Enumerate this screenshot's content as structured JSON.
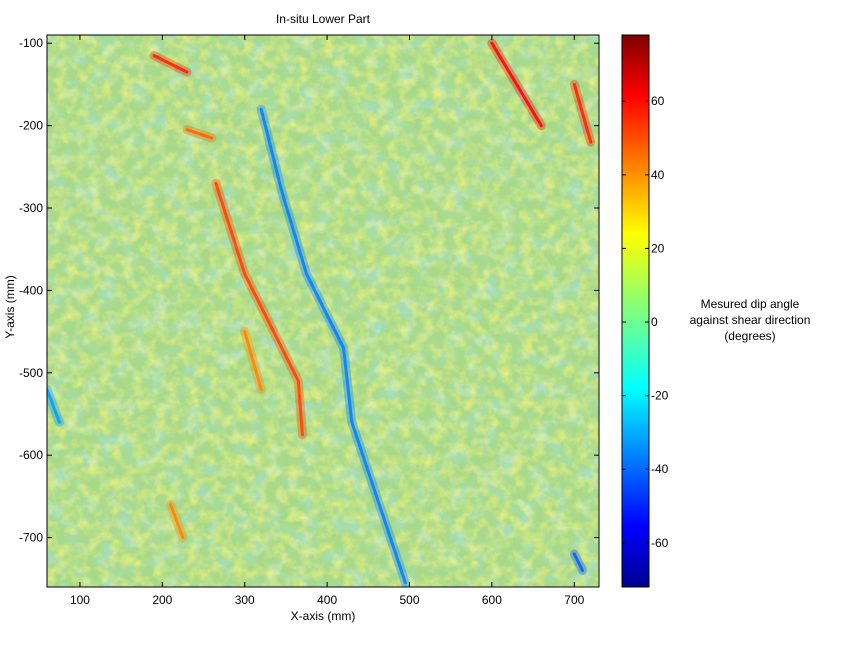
{
  "chart_data": {
    "type": "heatmap",
    "title": "In-situ Lower Part",
    "xlabel": "X-axis (mm)",
    "ylabel": "Y-axis (mm)",
    "xlim": [
      60,
      730
    ],
    "ylim": [
      -760,
      -90
    ],
    "xticks": [
      "100",
      "200",
      "300",
      "400",
      "500",
      "600",
      "700"
    ],
    "xtick_values": [
      100,
      200,
      300,
      400,
      500,
      600,
      700
    ],
    "yticks": [
      "-100",
      "-200",
      "-300",
      "-400",
      "-500",
      "-600",
      "-700"
    ],
    "ytick_values": [
      -100,
      -200,
      -300,
      -400,
      -500,
      -600,
      -700
    ],
    "colorbar": {
      "label_lines": [
        "Mesured dip angle",
        "against shear direction",
        "(degrees)"
      ],
      "clim": [
        -72,
        78
      ],
      "ticks": [
        "60",
        "40",
        "20",
        "0",
        "-20",
        "-40",
        "-60"
      ],
      "tick_values": [
        60,
        40,
        20,
        0,
        -20,
        -40,
        -60
      ],
      "colormap": "jet"
    },
    "grid": false,
    "features": [
      {
        "kind": "low-dip streak",
        "value": -35,
        "path": [
          [
            320,
            -180
          ],
          [
            345,
            -280
          ],
          [
            375,
            -380
          ],
          [
            420,
            -470
          ],
          [
            430,
            -560
          ],
          [
            470,
            -680
          ],
          [
            495,
            -755
          ]
        ]
      },
      {
        "kind": "high-dip streak",
        "value": 50,
        "path": [
          [
            265,
            -270
          ],
          [
            300,
            -380
          ],
          [
            365,
            -510
          ],
          [
            370,
            -575
          ]
        ]
      },
      {
        "kind": "high-dip streak",
        "value": 60,
        "path": [
          [
            600,
            -100
          ],
          [
            630,
            -150
          ],
          [
            660,
            -200
          ]
        ]
      },
      {
        "kind": "high-dip streak",
        "value": 55,
        "path": [
          [
            700,
            -150
          ],
          [
            720,
            -220
          ]
        ]
      },
      {
        "kind": "high-dip streak",
        "value": 55,
        "path": [
          [
            190,
            -115
          ],
          [
            230,
            -135
          ]
        ]
      },
      {
        "kind": "high-dip streak",
        "value": 45,
        "path": [
          [
            230,
            -205
          ],
          [
            260,
            -215
          ]
        ]
      },
      {
        "kind": "high-dip streak",
        "value": 40,
        "path": [
          [
            300,
            -450
          ],
          [
            320,
            -520
          ]
        ]
      },
      {
        "kind": "high-dip streak",
        "value": 40,
        "path": [
          [
            210,
            -660
          ],
          [
            225,
            -700
          ]
        ]
      },
      {
        "kind": "low-dip streak",
        "value": -40,
        "path": [
          [
            700,
            -720
          ],
          [
            710,
            -740
          ]
        ]
      },
      {
        "kind": "low-dip streak",
        "value": -30,
        "path": [
          [
            60,
            -520
          ],
          [
            75,
            -560
          ]
        ]
      }
    ]
  }
}
